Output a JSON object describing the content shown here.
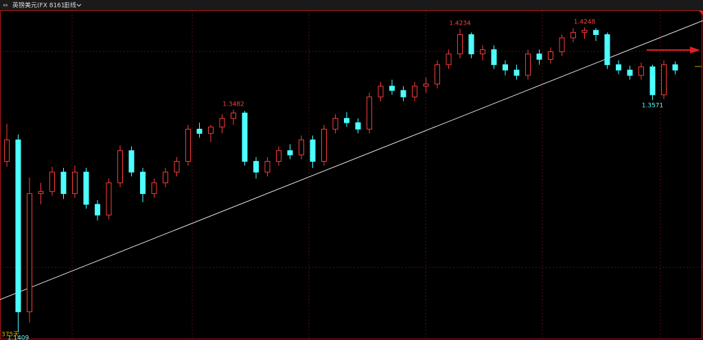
{
  "chart_data": {
    "type": "candlestick",
    "title": "英镑美元(FX 8161)",
    "period": "日线",
    "footer": "375天",
    "ylim": [
      1.135,
      1.44
    ],
    "up_color": "#ff3b3b",
    "down_color": "#4dffff",
    "open": [
      1.3,
      1.32,
      1.16,
      1.27,
      1.272,
      1.29,
      1.27,
      1.29,
      1.26,
      1.25,
      1.28,
      1.31,
      1.29,
      1.27,
      1.28,
      1.29,
      1.3,
      1.33,
      1.326,
      1.332,
      1.34,
      1.345,
      1.3,
      1.29,
      1.3,
      1.31,
      1.306,
      1.32,
      1.3,
      1.33,
      1.34,
      1.336,
      1.33,
      1.36,
      1.37,
      1.366,
      1.36,
      1.37,
      1.372,
      1.39,
      1.4,
      1.418,
      1.4,
      1.404,
      1.39,
      1.385,
      1.38,
      1.4,
      1.395,
      1.402,
      1.415,
      1.42,
      1.422,
      1.418,
      1.39,
      1.385,
      1.38,
      1.388,
      1.362,
      1.39
    ],
    "high": [
      1.335,
      1.325,
      1.285,
      1.28,
      1.295,
      1.294,
      1.296,
      1.294,
      1.264,
      1.284,
      1.315,
      1.314,
      1.294,
      1.284,
      1.294,
      1.304,
      1.334,
      1.336,
      1.334,
      1.344,
      1.3482,
      1.347,
      1.304,
      1.304,
      1.314,
      1.316,
      1.324,
      1.324,
      1.334,
      1.344,
      1.346,
      1.34,
      1.364,
      1.374,
      1.376,
      1.37,
      1.374,
      1.378,
      1.394,
      1.404,
      1.4234,
      1.42,
      1.408,
      1.408,
      1.394,
      1.39,
      1.404,
      1.404,
      1.406,
      1.418,
      1.424,
      1.4248,
      1.424,
      1.42,
      1.394,
      1.389,
      1.392,
      1.39,
      1.394,
      1.393
    ],
    "low": [
      1.295,
      1.1409,
      1.15,
      1.26,
      1.268,
      1.265,
      1.266,
      1.256,
      1.245,
      1.246,
      1.276,
      1.286,
      1.262,
      1.266,
      1.276,
      1.286,
      1.296,
      1.322,
      1.318,
      1.326,
      1.334,
      1.296,
      1.284,
      1.286,
      1.296,
      1.302,
      1.302,
      1.294,
      1.296,
      1.326,
      1.332,
      1.326,
      1.326,
      1.356,
      1.362,
      1.356,
      1.356,
      1.364,
      1.368,
      1.386,
      1.396,
      1.396,
      1.394,
      1.386,
      1.38,
      1.376,
      1.376,
      1.39,
      1.391,
      1.398,
      1.411,
      1.414,
      1.412,
      1.386,
      1.381,
      1.376,
      1.376,
      1.3571,
      1.358,
      1.381
    ],
    "close": [
      1.32,
      1.16,
      1.27,
      1.272,
      1.29,
      1.27,
      1.29,
      1.26,
      1.25,
      1.28,
      1.31,
      1.29,
      1.27,
      1.28,
      1.29,
      1.3,
      1.33,
      1.326,
      1.332,
      1.34,
      1.345,
      1.3,
      1.29,
      1.3,
      1.31,
      1.306,
      1.32,
      1.3,
      1.33,
      1.34,
      1.336,
      1.33,
      1.36,
      1.37,
      1.366,
      1.36,
      1.37,
      1.372,
      1.39,
      1.4,
      1.418,
      1.4,
      1.404,
      1.39,
      1.385,
      1.38,
      1.4,
      1.395,
      1.402,
      1.415,
      1.42,
      1.422,
      1.418,
      1.39,
      1.385,
      1.38,
      1.388,
      1.362,
      1.39,
      1.385
    ],
    "annotations": [
      {
        "label": "1.3482",
        "value": 1.3482
      },
      {
        "label": "1.4234",
        "value": 1.4234
      },
      {
        "label": "1.4248",
        "value": 1.4248
      },
      {
        "label": "1.3571",
        "value": 1.3571
      },
      {
        "label": "1.1409",
        "value": 1.1409
      }
    ]
  }
}
